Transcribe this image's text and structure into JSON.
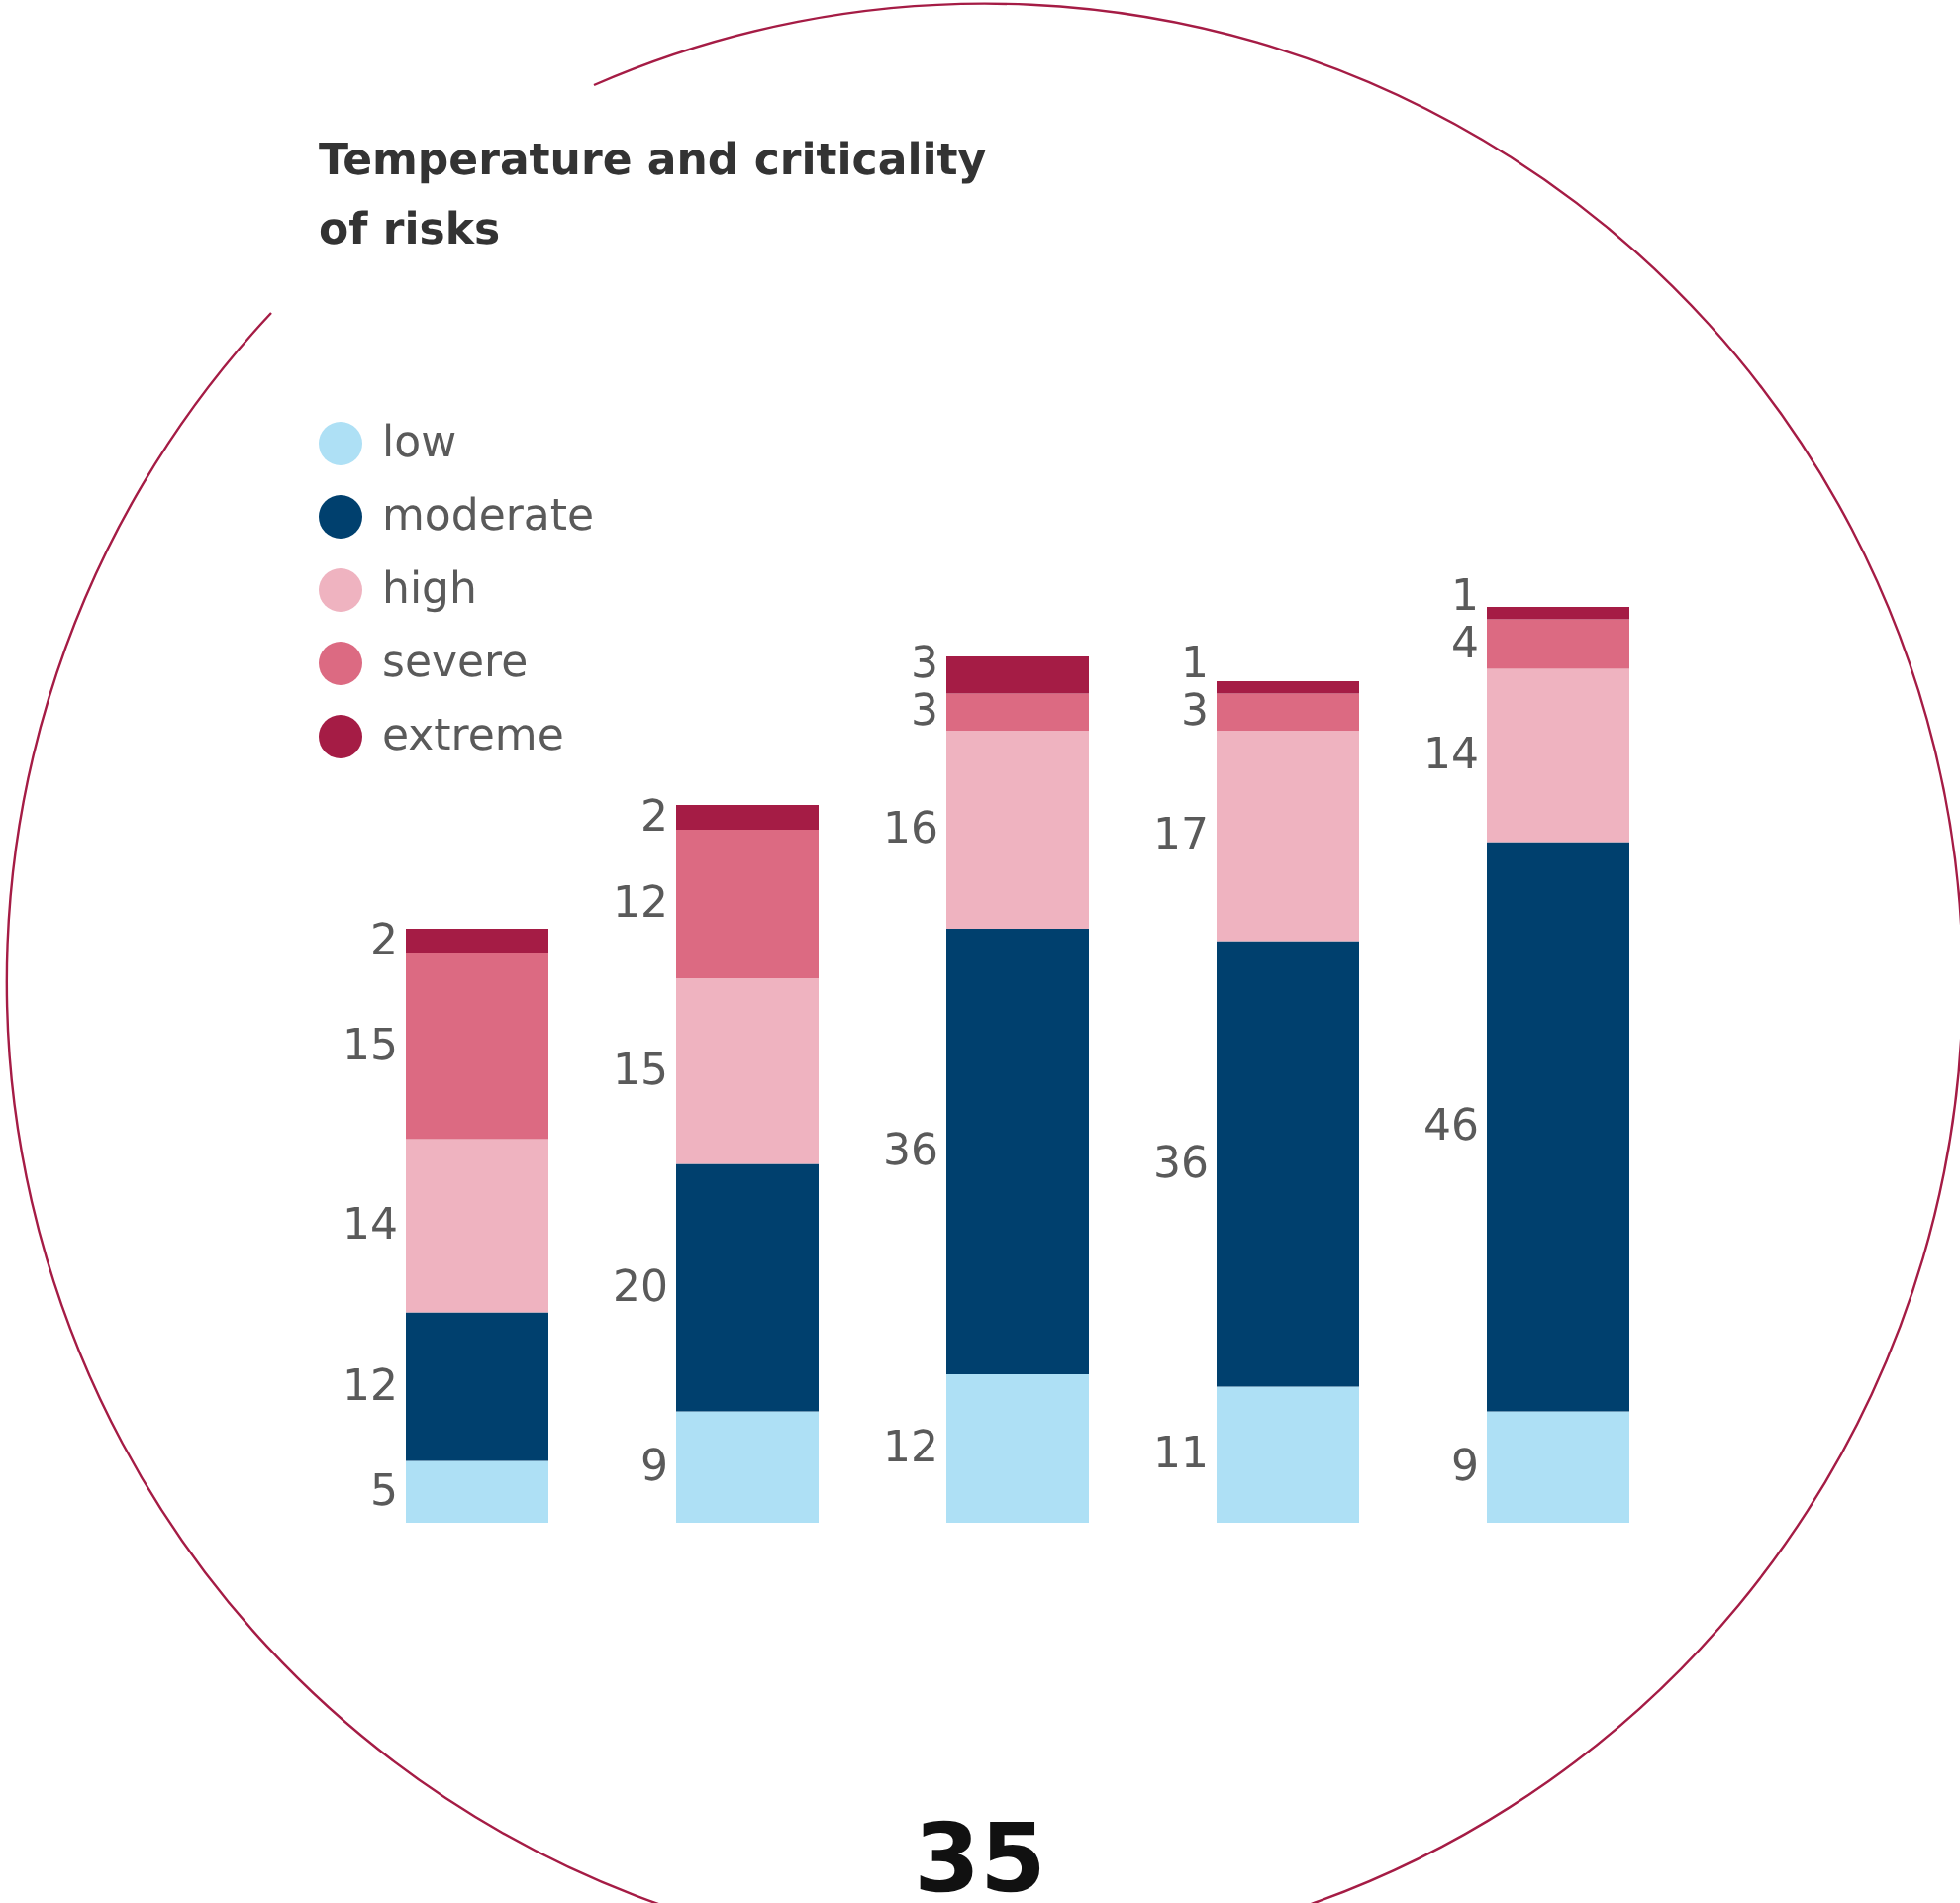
{
  "chart_data": {
    "type": "bar",
    "title": "Temperature and criticality of risks",
    "stacked": true,
    "data_labels": true,
    "legend": "top left",
    "categories": [
      null,
      null,
      null,
      null,
      null
    ],
    "series": [
      {
        "name": "low",
        "color": "#aee0f5",
        "values": [
          5,
          9,
          12,
          11,
          9
        ]
      },
      {
        "name": "moderate",
        "color": "#00406e",
        "values": [
          12,
          20,
          36,
          36,
          46
        ]
      },
      {
        "name": "high",
        "color": "#efb3c0",
        "values": [
          14,
          15,
          16,
          17,
          14
        ]
      },
      {
        "name": "severe",
        "color": "#dc6a82",
        "values": [
          15,
          12,
          3,
          3,
          4
        ]
      },
      {
        "name": "extreme",
        "color": "#a51c45",
        "values": [
          2,
          2,
          3,
          1,
          1
        ]
      }
    ],
    "annotations": [
      "35"
    ]
  }
}
